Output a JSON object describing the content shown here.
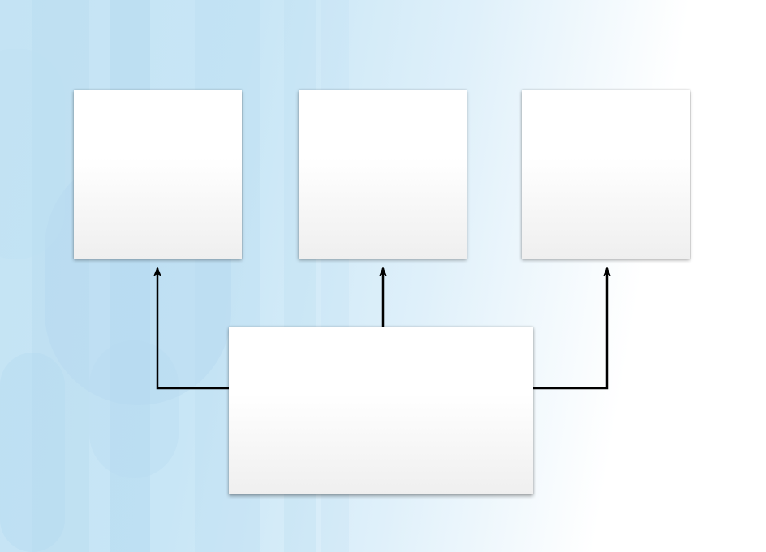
{
  "diagram": {
    "nodes": [
      {
        "id": "top-left",
        "label": ""
      },
      {
        "id": "top-center",
        "label": ""
      },
      {
        "id": "top-right",
        "label": ""
      },
      {
        "id": "bottom",
        "label": ""
      }
    ],
    "edges": [
      {
        "from": "bottom",
        "to": "top-left"
      },
      {
        "from": "bottom",
        "to": "top-center"
      },
      {
        "from": "bottom",
        "to": "top-right"
      }
    ]
  },
  "colors": {
    "connector": "#000000",
    "box_fill_top": "#ffffff",
    "box_fill_bottom": "#efefef",
    "background_blue": "#c4e3f4",
    "background_light": "#ffffff"
  }
}
